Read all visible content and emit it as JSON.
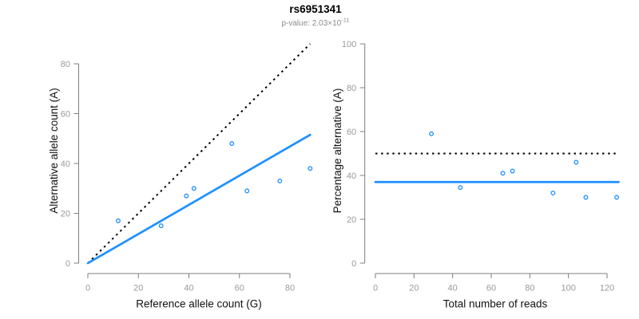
{
  "title": "rs6951341",
  "subtitle": {
    "prefix": "p-value: 2.03×10",
    "exponent": "-11"
  },
  "colors": {
    "fit_line_blue": "#1E90FF",
    "reference_line_black": "#000000",
    "point_blue": "#1E90FF",
    "axis_gray": "#7f7f7f",
    "tick_label_gray": "#9a9a9a",
    "subtitle_gray": "#8c8c8c",
    "title_black": "#000000",
    "background": "#ffffff"
  },
  "chart_data": [
    {
      "type": "scatter",
      "title": "rs6951341",
      "xlabel": "Reference allele count (G)",
      "ylabel": "Alternative allele count (A)",
      "xlim": [
        0,
        88
      ],
      "ylim": [
        0,
        88
      ],
      "xticks": [
        0,
        20,
        40,
        60,
        80
      ],
      "yticks": [
        0,
        20,
        40,
        60,
        80
      ],
      "grid": false,
      "points": [
        [
          12,
          17
        ],
        [
          29,
          15
        ],
        [
          39,
          27
        ],
        [
          42,
          30
        ],
        [
          57,
          48
        ],
        [
          63,
          29
        ],
        [
          76,
          33
        ],
        [
          88,
          38
        ]
      ],
      "lines": [
        {
          "name": "identity",
          "style": "dotted",
          "color": "#000000",
          "from": [
            0,
            0
          ],
          "to": [
            88,
            88
          ]
        },
        {
          "name": "fit",
          "style": "solid",
          "color": "#1E90FF",
          "from": [
            0,
            0
          ],
          "to": [
            88,
            51.5
          ],
          "slope": 0.585
        }
      ]
    },
    {
      "type": "scatter",
      "title": "rs6951341",
      "xlabel": "Total number of reads",
      "ylabel": "Percentage alternative (A)",
      "xlim": [
        0,
        126
      ],
      "ylim": [
        0,
        100
      ],
      "xticks": [
        0,
        20,
        40,
        60,
        80,
        100,
        120
      ],
      "yticks": [
        0,
        20,
        40,
        60,
        80,
        100
      ],
      "grid": false,
      "points": [
        [
          29,
          59
        ],
        [
          44,
          34.5
        ],
        [
          66,
          41
        ],
        [
          71,
          42
        ],
        [
          92,
          32
        ],
        [
          104,
          46
        ],
        [
          109,
          30
        ],
        [
          125,
          30
        ]
      ],
      "lines": [
        {
          "name": "expected-50pct",
          "style": "dotted",
          "color": "#000000",
          "from": [
            0,
            50
          ],
          "to": [
            126,
            50
          ],
          "value": 50
        },
        {
          "name": "mean-percentage",
          "style": "solid",
          "color": "#1E90FF",
          "from": [
            0,
            37
          ],
          "to": [
            126,
            37
          ],
          "value": 37
        }
      ]
    }
  ]
}
